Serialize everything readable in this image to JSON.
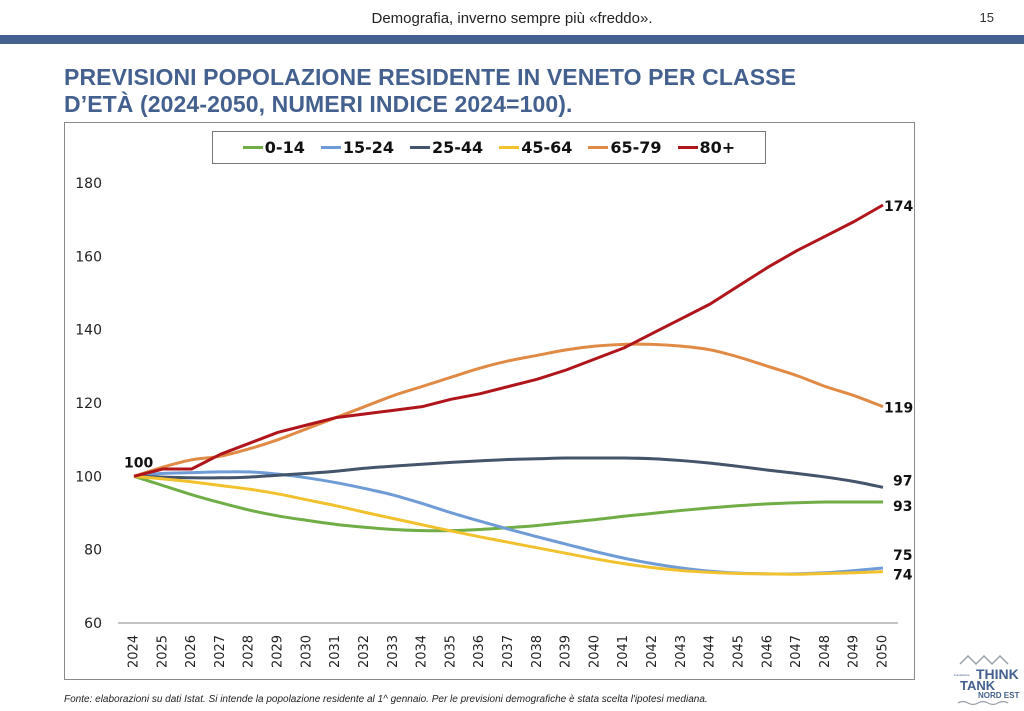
{
  "header": {
    "title": "Demografia, inverno sempre più «freddo».",
    "page_number": "15"
  },
  "slide_title_line1": "PREVISIONI POPOLAZIONE RESIDENTE IN VENETO PER CLASSE",
  "slide_title_line2": "D’ETÀ (2024-2050, NUMERI INDICE 2024=100).",
  "footnote": "Fonte: elaborazioni su dati Istat. Si intende la popolazione residente al 1^ gennaio. Per le previsioni demografiche è stata scelta l'ipotesi mediana.",
  "logo": {
    "small_text": "Fondazione",
    "line1": "THINK",
    "line2": "TANK",
    "line3": "NORD EST"
  },
  "chart_data": {
    "type": "line",
    "title": "PREVISIONI POPOLAZIONE RESIDENTE IN VENETO PER CLASSE D’ETÀ (2024-2050, NUMERI INDICE 2024=100).",
    "xlabel": "",
    "ylabel": "",
    "ylim": [
      60,
      180
    ],
    "yticks": [
      60,
      80,
      100,
      120,
      140,
      160,
      180
    ],
    "grid": false,
    "legend_position": "top-center",
    "x": [
      "2024",
      "2025",
      "2026",
      "2027",
      "2028",
      "2029",
      "2030",
      "2031",
      "2032",
      "2033",
      "2034",
      "2035",
      "2036",
      "2037",
      "2038",
      "2039",
      "2040",
      "2041",
      "2042",
      "2043",
      "2044",
      "2045",
      "2046",
      "2047",
      "2048",
      "2049",
      "2050"
    ],
    "series": [
      {
        "name": "0-14",
        "color": "#70ad47",
        "values": [
          100,
          97.5,
          95,
          92.8,
          90.8,
          89.2,
          88,
          86.9,
          86.1,
          85.5,
          85.2,
          85.2,
          85.5,
          86,
          86.6,
          87.4,
          88.2,
          89.1,
          89.9,
          90.7,
          91.4,
          92,
          92.5,
          92.8,
          93,
          93,
          93
        ],
        "end_label": "93"
      },
      {
        "name": "15-24",
        "color": "#6f9bd6",
        "values": [
          100,
          100.8,
          101,
          101.2,
          101.2,
          100.6,
          99.6,
          98.3,
          96.7,
          94.9,
          92.6,
          90.1,
          87.8,
          85.6,
          83.5,
          81.5,
          79.5,
          77.7,
          76.2,
          75,
          74.1,
          73.6,
          73.4,
          73.4,
          73.7,
          74.3,
          75
        ],
        "end_label": "75"
      },
      {
        "name": "25-44",
        "color": "#44546a",
        "values": [
          100,
          99.8,
          99.6,
          99.6,
          99.8,
          100.3,
          100.8,
          101.4,
          102.2,
          102.8,
          103.3,
          103.8,
          104.2,
          104.6,
          104.8,
          105,
          105,
          105,
          104.8,
          104.3,
          103.6,
          102.7,
          101.7,
          100.8,
          99.8,
          98.6,
          97
        ],
        "end_label": "97"
      },
      {
        "name": "45-64",
        "color": "#f2c12e",
        "values": [
          100,
          99.3,
          98.5,
          97.5,
          96.5,
          95.2,
          93.6,
          92,
          90.2,
          88.5,
          86.8,
          85.1,
          83.5,
          82,
          80.5,
          79,
          77.5,
          76.2,
          75.1,
          74.3,
          73.8,
          73.5,
          73.4,
          73.3,
          73.5,
          73.7,
          74
        ],
        "end_label": "74"
      },
      {
        "name": "65-79",
        "color": "#e08a45",
        "values": [
          100,
          102.5,
          104.5,
          105.5,
          107.5,
          110,
          113,
          116,
          119,
          122,
          124.5,
          127,
          129.5,
          131.5,
          133,
          134.5,
          135.5,
          136,
          136,
          135.5,
          134.5,
          132.5,
          130,
          127.5,
          124.5,
          122,
          119
        ],
        "end_label": "119"
      },
      {
        "name": "80+",
        "color": "#b0151c",
        "values": [
          100,
          102,
          102,
          106,
          109,
          112,
          114,
          116,
          117,
          118,
          119,
          121,
          122.5,
          124.5,
          126.5,
          129,
          132,
          135,
          139,
          143,
          147,
          152,
          157,
          161.5,
          165.5,
          169.5,
          174
        ],
        "end_label": "174"
      }
    ],
    "annotations": [
      {
        "text": "100",
        "x": "2024",
        "y": 100
      }
    ]
  }
}
